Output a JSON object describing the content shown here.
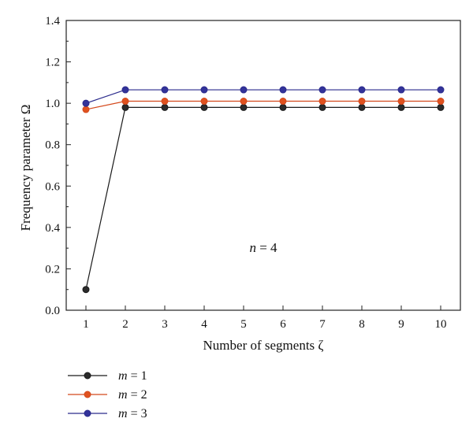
{
  "chart_data": {
    "type": "line",
    "title": "",
    "xlabel": "Number of segments ζ",
    "ylabel": "Frequency parameter Ω",
    "x": [
      1,
      2,
      3,
      4,
      5,
      6,
      7,
      8,
      9,
      10
    ],
    "xlim": [
      0.5,
      10.5
    ],
    "ylim": [
      0,
      1.4
    ],
    "xticks": [
      "1",
      "2",
      "3",
      "4",
      "5",
      "6",
      "7",
      "8",
      "9",
      "10"
    ],
    "yticks": [
      "0.0",
      "0.2",
      "0.4",
      "0.6",
      "0.8",
      "1.0",
      "1.2",
      "1.4"
    ],
    "grid": false,
    "legend_position": "bottom-left, below plot",
    "annotation": {
      "var": "n",
      "rest": " = 4"
    },
    "series": [
      {
        "var": "m",
        "rest": " = 1",
        "color": "#1a1a1a",
        "fill": "#2b2b2b",
        "values": [
          0.1,
          0.98,
          0.98,
          0.98,
          0.98,
          0.98,
          0.98,
          0.98,
          0.98,
          0.98
        ]
      },
      {
        "var": "m",
        "rest": " = 2",
        "color": "#d4491c",
        "fill": "#e0521f",
        "values": [
          0.97,
          1.01,
          1.01,
          1.01,
          1.01,
          1.01,
          1.01,
          1.01,
          1.01,
          1.01
        ]
      },
      {
        "var": "m",
        "rest": " = 3",
        "color": "#2a2a8c",
        "fill": "#33339a",
        "values": [
          1.0,
          1.065,
          1.065,
          1.065,
          1.065,
          1.065,
          1.065,
          1.065,
          1.065,
          1.065
        ]
      }
    ]
  }
}
